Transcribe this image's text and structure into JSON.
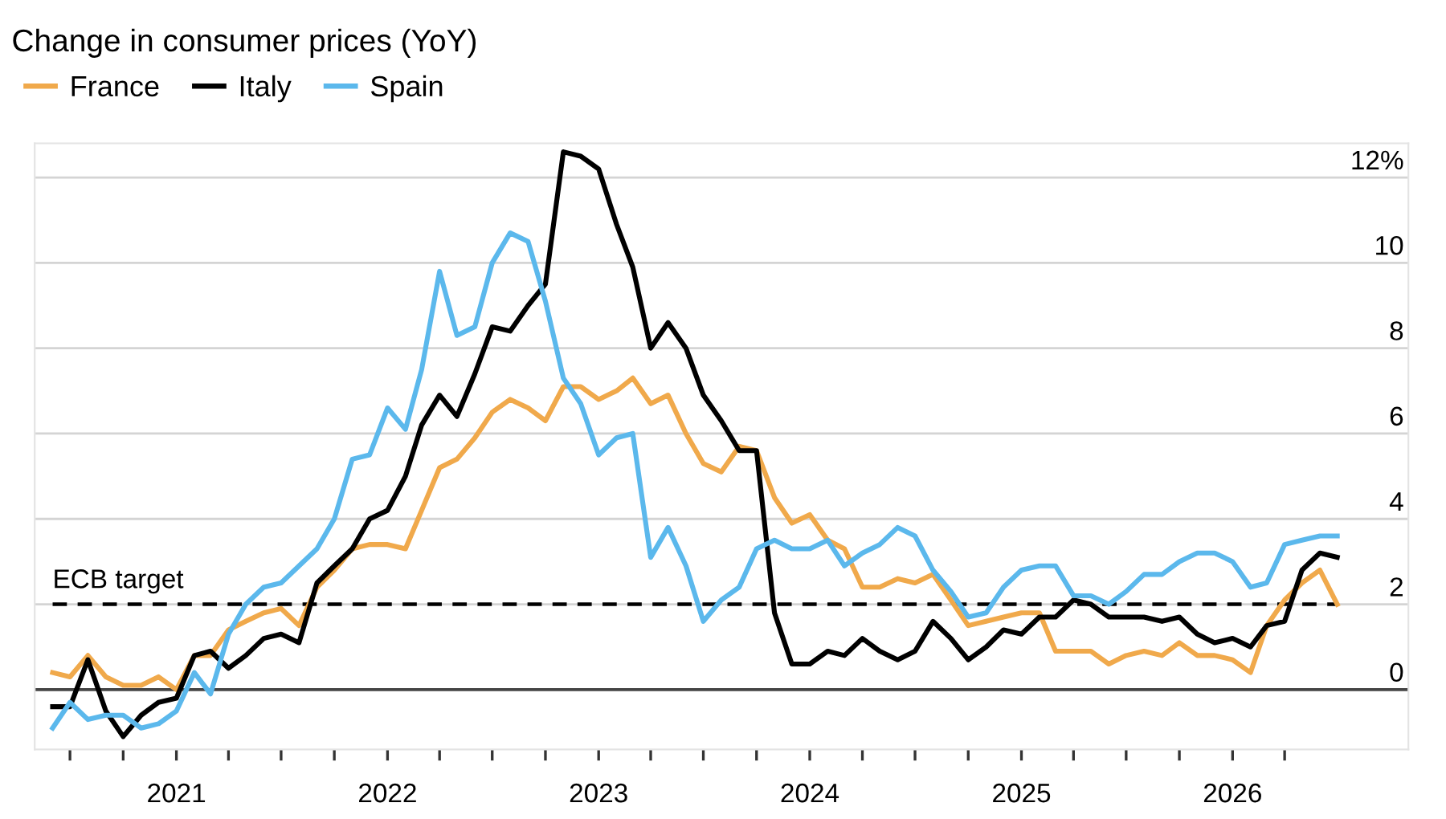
{
  "chart_data": {
    "type": "line",
    "title": "Change in consumer prices (YoY)",
    "x": [
      "2020-06",
      "2020-07",
      "2020-08",
      "2020-09",
      "2020-10",
      "2020-11",
      "2020-12",
      "2021-01",
      "2021-02",
      "2021-03",
      "2021-04",
      "2021-05",
      "2021-06",
      "2021-07",
      "2021-08",
      "2021-09",
      "2021-10",
      "2021-11",
      "2021-12",
      "2022-01",
      "2022-02",
      "2022-03",
      "2022-04",
      "2022-05",
      "2022-06",
      "2022-07",
      "2022-08",
      "2022-09",
      "2022-10",
      "2022-11",
      "2022-12",
      "2023-01",
      "2023-02",
      "2023-03",
      "2023-04",
      "2023-05",
      "2023-06",
      "2023-07",
      "2023-08",
      "2023-09",
      "2023-10",
      "2023-11",
      "2023-12",
      "2024-01",
      "2024-02",
      "2024-03",
      "2024-04",
      "2024-05",
      "2024-06",
      "2024-07",
      "2024-08",
      "2024-09",
      "2024-10",
      "2024-11",
      "2024-12",
      "2025-01",
      "2025-02",
      "2025-03",
      "2025-04",
      "2025-05",
      "2025-06",
      "2025-07",
      "2025-08",
      "2025-09",
      "2025-10",
      "2025-11",
      "2025-12",
      "2026-01",
      "2026-02",
      "2026-03",
      "2026-04",
      "2026-05",
      "2026-06",
      "2026-07"
    ],
    "series": [
      {
        "name": "France",
        "color": "#f0a94b",
        "values": [
          0.4,
          0.3,
          0.8,
          0.3,
          0.1,
          0.1,
          0.3,
          0.0,
          0.8,
          0.8,
          1.4,
          1.6,
          1.8,
          1.9,
          1.5,
          2.4,
          2.8,
          3.3,
          3.4,
          3.4,
          3.3,
          4.2,
          5.2,
          5.4,
          5.9,
          6.5,
          6.8,
          6.6,
          6.3,
          7.1,
          7.1,
          6.8,
          7.0,
          7.3,
          6.7,
          6.9,
          6.0,
          5.3,
          5.1,
          5.7,
          5.6,
          4.5,
          3.9,
          4.1,
          3.5,
          3.3,
          2.4,
          2.4,
          2.6,
          2.5,
          2.7,
          2.1,
          1.5,
          1.6,
          1.7,
          1.8,
          1.8,
          0.9,
          0.9,
          0.9,
          0.6,
          0.8,
          0.9,
          0.8,
          1.1,
          0.8,
          0.8,
          0.7,
          0.4,
          1.5,
          2.1,
          2.5,
          2.8,
          2.0
        ]
      },
      {
        "name": "Italy",
        "color": "#000000",
        "values": [
          -0.4,
          -0.4,
          0.7,
          -0.5,
          -1.1,
          -0.6,
          -0.3,
          -0.2,
          0.8,
          0.9,
          0.5,
          0.8,
          1.2,
          1.3,
          1.1,
          2.5,
          2.9,
          3.3,
          4.0,
          4.2,
          5.0,
          6.2,
          6.9,
          6.4,
          7.4,
          8.5,
          8.4,
          9.0,
          9.5,
          12.6,
          12.5,
          12.2,
          10.9,
          9.9,
          8.0,
          8.6,
          8.0,
          6.9,
          6.3,
          5.6,
          5.6,
          1.8,
          0.6,
          0.6,
          0.9,
          0.8,
          1.2,
          0.9,
          0.7,
          0.9,
          1.6,
          1.2,
          0.7,
          1.0,
          1.4,
          1.3,
          1.7,
          1.7,
          2.1,
          2.0,
          1.7,
          1.7,
          1.7,
          1.6,
          1.7,
          1.3,
          1.1,
          1.2,
          1.0,
          1.5,
          1.6,
          2.8,
          3.2,
          3.1
        ]
      },
      {
        "name": "Spain",
        "color": "#5bb8ec",
        "values": [
          -0.9,
          -0.3,
          -0.7,
          -0.6,
          -0.6,
          -0.9,
          -0.8,
          -0.5,
          0.4,
          -0.1,
          1.3,
          2.0,
          2.4,
          2.5,
          2.9,
          3.3,
          4.0,
          5.4,
          5.5,
          6.6,
          6.1,
          7.5,
          9.8,
          8.3,
          8.5,
          10.0,
          10.7,
          10.5,
          9.1,
          7.3,
          6.7,
          5.5,
          5.9,
          6.0,
          3.1,
          3.8,
          2.9,
          1.6,
          2.1,
          2.4,
          3.3,
          3.5,
          3.3,
          3.3,
          3.5,
          2.9,
          3.2,
          3.4,
          3.8,
          3.6,
          2.8,
          2.3,
          1.7,
          1.8,
          2.4,
          2.8,
          2.9,
          2.9,
          2.2,
          2.2,
          2.0,
          2.3,
          2.7,
          2.7,
          3.0,
          3.2,
          3.2,
          3.0,
          2.4,
          2.5,
          3.4,
          3.5,
          3.6,
          3.6
        ]
      }
    ],
    "xlim": [
      "2020-05-01",
      "2026-11-01"
    ],
    "xticks": [
      {
        "value": "2020-07",
        "label": null
      },
      {
        "value": "2020-10",
        "label": null
      },
      {
        "value": "2021-01",
        "label": "2021"
      },
      {
        "value": "2021-04",
        "label": null
      },
      {
        "value": "2021-07",
        "label": null
      },
      {
        "value": "2021-10",
        "label": null
      },
      {
        "value": "2022-01",
        "label": "2022"
      },
      {
        "value": "2022-04",
        "label": null
      },
      {
        "value": "2022-07",
        "label": null
      },
      {
        "value": "2022-10",
        "label": null
      },
      {
        "value": "2023-01",
        "label": "2023"
      },
      {
        "value": "2023-04",
        "label": null
      },
      {
        "value": "2023-07",
        "label": null
      },
      {
        "value": "2023-10",
        "label": null
      },
      {
        "value": "2024-01",
        "label": "2024"
      },
      {
        "value": "2024-04",
        "label": null
      },
      {
        "value": "2024-07",
        "label": null
      },
      {
        "value": "2024-10",
        "label": null
      },
      {
        "value": "2025-01",
        "label": "2025"
      },
      {
        "value": "2025-04",
        "label": null
      },
      {
        "value": "2025-07",
        "label": null
      },
      {
        "value": "2025-10",
        "label": null
      },
      {
        "value": "2026-01",
        "label": "2026"
      },
      {
        "value": "2026-04",
        "label": null
      }
    ],
    "ylim": [
      -1.4,
      12.8
    ],
    "yticks": [
      0,
      2,
      4,
      6,
      8,
      10,
      {
        "value": 12,
        "label": "12%"
      }
    ],
    "ref_lines": [
      {
        "axis": "y",
        "value": 2,
        "label": "ECB target",
        "color": "#000000",
        "line_style": "dashed"
      }
    ],
    "grid": "y",
    "legend": "top left",
    "marker": "none",
    "line_style": "solid"
  }
}
